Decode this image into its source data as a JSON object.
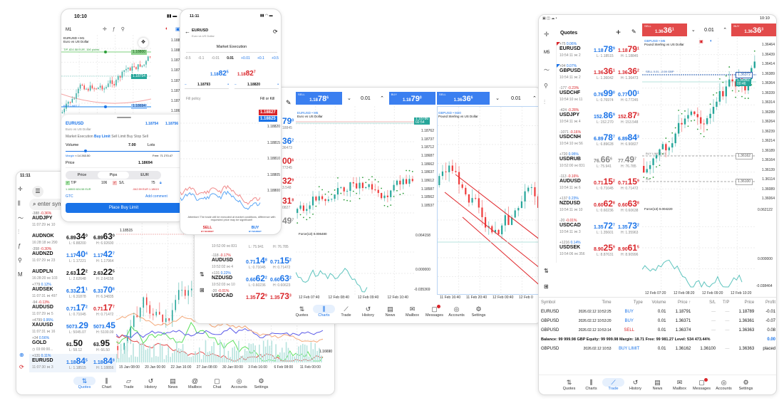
{
  "colors": {
    "accent": "#1a73e8",
    "bid_up": "#1a73e8",
    "down": "#d9252a",
    "bull": "#26a69a",
    "bear": "#ef3b3b",
    "sell_bar": "#e24a4a",
    "force": "#5ec4be"
  },
  "left_tablet": {
    "status_time": "11:11",
    "search_placeholder": "enter sym",
    "sidebar_icons": [
      "crosshair-icon",
      "candles-icon",
      "chart-trade-icon",
      "indicators-icon",
      "function-icon",
      "objects-icon",
      "timeframe-icon",
      "zoom-icon",
      "sync-icon"
    ],
    "quotes": [
      {
        "chg": "-388",
        "pct": "-0.36%",
        "pct_color": "red",
        "sym": "AUDJPY",
        "meta": "11:07:29 ⋈ 10",
        "bid": null,
        "ask": null,
        "low": "",
        "high": ""
      },
      {
        "chg": "",
        "pct": "",
        "pct_color": "red",
        "sym": "AUDNOK",
        "meta": "16:28:18 ⋈ 290",
        "bid": {
          "pre": "6.89",
          "big": "34",
          "sup": "0",
          "c": "blk"
        },
        "ask": {
          "pre": "6.89",
          "big": "63",
          "sup": "0",
          "c": "blk"
        },
        "low": "L: 6.88200",
        "high": "H: 6.92600"
      },
      {
        "chg": "-358",
        "pct": "-0.30%",
        "pct_color": "red",
        "sym": "AUDNZD",
        "meta": "11:07:29 ⋈ 23",
        "bid": {
          "pre": "1.17",
          "big": "40",
          "sup": "4",
          "c": "blue"
        },
        "ask": {
          "pre": "1.17",
          "big": "42",
          "sup": "7",
          "c": "blue"
        },
        "low": "L: 1.17221",
        "high": "H: 1.17964"
      },
      {
        "chg": "",
        "pct": "",
        "pct_color": "red",
        "sym": "AUDPLN",
        "meta": "16:28:20 ⋈ 103",
        "bid": {
          "pre": "2.63",
          "big": "12",
          "sup": "2",
          "c": "blk"
        },
        "ask": {
          "pre": "2.63",
          "big": "22",
          "sup": "5",
          "c": "blk"
        },
        "low": "L: 2.62648",
        "high": "H: 2.64158"
      },
      {
        "chg": "+779",
        "pct": "0.12%",
        "pct_color": "blue",
        "sym": "AUDSEK",
        "meta": "11:07:31 ⋈ 497",
        "bid": {
          "pre": "6.33",
          "big": "21",
          "sup": "1",
          "c": "blue"
        },
        "ask": {
          "pre": "6.33",
          "big": "70",
          "sup": "8",
          "c": "blue"
        },
        "low": "L: 6.31878",
        "high": "H: 6.34835"
      },
      {
        "chg": "-94",
        "pct": "-0.13%",
        "pct_color": "red",
        "sym": "AUDUSD",
        "meta": "11:07:29 ⋈ 5",
        "bid": {
          "pre": "0.71",
          "big": "17",
          "sup": "2",
          "c": "blue"
        },
        "ask": {
          "pre": "0.71",
          "big": "17",
          "sup": "7",
          "c": "red"
        },
        "low": "L: 0.71045",
        "high": "H: 0.71472"
      },
      {
        "chg": "+4799",
        "pct": "0.95%",
        "pct_color": "blue",
        "sym": "XAUUSD",
        "meta": "11:07:31 ⋈ 16",
        "bid": {
          "pre": "5073.",
          "big": "29",
          "sup": "",
          "c": "blue"
        },
        "ask": {
          "pre": "5073.",
          "big": "45",
          "sup": "",
          "c": "blue"
        },
        "low": "L: 5045.07",
        "high": "H: 5100.09"
      },
      {
        "chg": "+34",
        "pct": "0.56%",
        "pct_color": "blue",
        "sym": "GOLD",
        "meta": "◷ 03:00:00...",
        "bid": {
          "pre": "61.",
          "big": "50",
          "sup": "",
          "c": "blk"
        },
        "ask": {
          "pre": "63.",
          "big": "95",
          "sup": "",
          "c": "blk"
        },
        "low": "L: 58.12",
        "high": "H: 66.50"
      },
      {
        "chg": "+131",
        "pct": "0.11%",
        "pct_color": "blue",
        "sym": "EURUSD",
        "meta": "11:07:30 ⋈ 3",
        "bid": {
          "pre": "1.18",
          "big": "84",
          "sup": "5",
          "c": "blue"
        },
        "ask": {
          "pre": "1.18",
          "big": "84",
          "sup": "8",
          "c": "blue"
        },
        "low": "L: 1.18515",
        "high": "H: 1.18856"
      }
    ],
    "price_labels": [
      "1.18515",
      "1.16690"
    ],
    "time_labels": [
      "15 Jan 08:00",
      "20 Jan 00:00",
      "22 Jan 16:00",
      "27 Jan 08:00",
      "30 Jan 00:00",
      "3 Feb 16:00",
      "6 Feb 08:00",
      "11 Feb 00:00"
    ],
    "nav": [
      {
        "label": "Quotes",
        "icon": "⇅",
        "active": true
      },
      {
        "label": "Chart",
        "icon": "⫼"
      },
      {
        "label": "Trade",
        "icon": "▱"
      },
      {
        "label": "History",
        "icon": "↺"
      },
      {
        "label": "News",
        "icon": "▤"
      },
      {
        "label": "Mailbox",
        "icon": "@"
      },
      {
        "label": "Chat",
        "icon": "▢"
      },
      {
        "label": "Accounts",
        "icon": "◎"
      },
      {
        "label": "Settings",
        "icon": "⚙"
      }
    ]
  },
  "phone1": {
    "status_time": "10:10",
    "timeframe": "M1",
    "chart_symbol": "EURUSD • M1",
    "chart_desc": "Euro vs US Dollar",
    "tp_line": "T/P, 824.58 EUR, 106 points",
    "buy_limit_line": "BUY LIMIT 7",
    "axis": [
      "1.18820",
      "1.18800",
      "1.18780",
      "1.18760",
      "1.18740",
      "1.18720",
      "1.18700",
      "1.18680"
    ],
    "tags": {
      "tp": "1.18800",
      "current": "1.18754",
      "buy_limit": "1.18694"
    },
    "sheet": {
      "symbol": "EURUSD",
      "desc": "Euro vs US Dollar",
      "bid": "1.18754",
      "ask": "1.18756",
      "order_types": [
        "Market Execution",
        "Buy Limit",
        "Sell Limit",
        "Buy Stop",
        "Sell"
      ],
      "active_order_type": "Buy Limit",
      "volume_label": "Volume",
      "volume": "7.00",
      "volume_unit": "Lots",
      "margin_label": "Margin",
      "margin": "≈ 14 263.50",
      "free": "Free: 71 270.47",
      "price_label": "Price",
      "price": "1.18694",
      "segments": [
        "Price",
        "Pips",
        "EUR"
      ],
      "active_segment": "Pips",
      "tp_label": "T/P",
      "tp": "106",
      "sl_label": "S/L",
      "sl": "75",
      "tp_info": "1.18800  824.58 EUR",
      "sl_info": "-542.59 EUR  1.18619",
      "expiry": "GTC",
      "add_comment": "Add comment",
      "place": "Place Buy Limit"
    }
  },
  "phone2": {
    "status_time": "11:11",
    "symbol": "EURUSD",
    "desc": "Euro vs US Dollar",
    "execution": "Market Execution",
    "steps": [
      "-0.5",
      "-0.1",
      "-0.01",
      "0.01",
      "+0.01",
      "+0.1",
      "+0.5"
    ],
    "sell_price": {
      "pre": "1.18",
      "big": "82",
      "sup": "5"
    },
    "buy_price": {
      "pre": "1.18",
      "big": "82",
      "sup": "7"
    },
    "sl_value": "1.18793",
    "tp_value": "1.18820",
    "fill_label": "Fill policy",
    "fill_value": "Fill or Kill",
    "axis": [
      "1.18820",
      "1.18815",
      "1.18810",
      "1.18805",
      "1.18800"
    ],
    "tags": {
      "ask": "1.18827",
      "bid": "1.18825"
    },
    "attention": "Attention! The trade will be executed at market conditions, difference with requested price may be significant!",
    "sell": "SELL",
    "buy": "BUY",
    "by_market": "BY MARKET"
  },
  "mid_tablet": {
    "partial_prices": [
      {
        "p": "79",
        "s": "0",
        "c": "blue",
        "l": "18845"
      },
      {
        "p": "36",
        "s": "2",
        "c": "blue",
        "l": "36473"
      },
      {
        "p": "00",
        "s": "6",
        "c": "red",
        "l": "77245"
      },
      {
        "p": "32",
        "s": "9",
        "c": "red",
        "l": "3.548"
      },
      {
        "p": "31",
        "s": "8",
        "c": "red",
        "l": "0827"
      },
      {
        "p": "49",
        "s": "7",
        "c": "gray",
        "l": ""
      }
    ],
    "quotes": [
      {
        "chg": "",
        "pct": "",
        "pct_color": "red",
        "sym": "",
        "meta": "10:52:00 ⋈ 831",
        "bid": null,
        "ask": null,
        "low": "L: 75.941",
        "high": "H: 76.785"
      },
      {
        "chg": "-118",
        "pct": "-0.17%",
        "pct_color": "red",
        "sym": "AUDUSD",
        "meta": "10:52:02 ⋈ 4",
        "bid": {
          "pre": "0.71",
          "big": "14",
          "sup": "8",
          "c": "blue"
        },
        "ask": {
          "pre": "0.71",
          "big": "15",
          "sup": "2",
          "c": "blue"
        },
        "low": "L: 0.71045",
        "high": "H: 0.71472"
      },
      {
        "chg": "+131",
        "pct": "0.22%",
        "pct_color": "blue",
        "sym": "NZDUSD",
        "meta": "10:52:03 ⋈ 10",
        "bid": {
          "pre": "0.60",
          "big": "62",
          "sup": "2",
          "c": "blue"
        },
        "ask": {
          "pre": "0.60",
          "big": "63",
          "sup": "2",
          "c": "blue"
        },
        "low": "L: 0.60236",
        "high": "H: 0.60623"
      },
      {
        "chg": "-20",
        "pct": "-0.01%",
        "pct_color": "red",
        "sym": "USDCAD",
        "meta": "",
        "bid": {
          "pre": "1.35",
          "big": "72",
          "sup": "9",
          "c": "red"
        },
        "ask": {
          "pre": "1.35",
          "big": "73",
          "sup": "3",
          "c": "red"
        },
        "low": "",
        "high": ""
      }
    ],
    "chart1": {
      "sell_label": "SELL",
      "sell": {
        "pre": "1.18",
        "big": "78",
        "sup": "6"
      },
      "buy_label": "BUY",
      "buy": {
        "pre": "1.18",
        "big": "79",
        "sup": "0"
      },
      "volume": "0.01",
      "symbol": "EURUSD • M5",
      "desc": "Euro vs US Dollar",
      "axis": [
        "1.18762",
        "1.18737",
        "1.18712",
        "1.18687",
        "1.18662",
        "1.18637",
        "1.18612",
        "1.18587",
        "1.18562",
        "1.18537"
      ],
      "tag": "1.18786",
      "tag_time": "02:54",
      "force_label": "Force(13) 0.006480",
      "force_axis": [
        "0.064158",
        "0.000000",
        "-0.035369"
      ],
      "times": [
        "12 Feb 07:40",
        "12 Feb 08:40",
        "12 Feb 09:40",
        "12 Feb 10:40"
      ]
    },
    "chart2": {
      "sell_label": "SELL",
      "sell": {
        "pre": "1.36",
        "big": "36",
        "sup": "6"
      },
      "symbol": "GBPUSD • M20",
      "desc": "Pound Sterling vs US Dollar",
      "times": [
        "11 Feb 16:40",
        "11 Feb 20:40",
        "12 Feb 00:40",
        "12 Feb 0"
      ]
    },
    "nav": [
      {
        "label": "Quotes",
        "icon": "⇅"
      },
      {
        "label": "Charts",
        "icon": "⫼",
        "active": true
      },
      {
        "label": "Trade",
        "icon": "⟋"
      },
      {
        "label": "History",
        "icon": "↺"
      },
      {
        "label": "News",
        "icon": "▤"
      },
      {
        "label": "Mailbox",
        "icon": "✉"
      },
      {
        "label": "Messages",
        "icon": "▢",
        "badge": true
      },
      {
        "label": "Accounts",
        "icon": "◎"
      },
      {
        "label": "Settings",
        "icon": "⚙"
      }
    ]
  },
  "right_tablet": {
    "status_time": "10:10",
    "side": [
      "crosshair-icon",
      "M5",
      "indicators-icon",
      "objects-icon",
      "settings-sliders-icon"
    ],
    "timeframe": "M5",
    "quotes_title": "Quotes",
    "quotes": [
      {
        "chg": "+75",
        "pct": "0.06%",
        "pct_color": "blue",
        "sym": "EURUSD",
        "meta": "10:54:11 ⋈ 2",
        "bid": {
          "pre": "1.18",
          "big": "78",
          "sup": "9",
          "c": "blue"
        },
        "ask": {
          "pre": "1.18",
          "big": "79",
          "sup": "1",
          "c": "red"
        },
        "low": "L: 1.18515",
        "high": "H: 1.18845",
        "flag": "red"
      },
      {
        "chg": "+94",
        "pct": "0.07%",
        "pct_color": "blue",
        "sym": "GBPUSD",
        "meta": "10:54:11 ⋈ 2",
        "bid": {
          "pre": "1.36",
          "big": "36",
          "sup": "1",
          "c": "red"
        },
        "ask": {
          "pre": "1.36",
          "big": "36",
          "sup": "2",
          "c": "red"
        },
        "low": "L: 1.36042",
        "high": "H: 1.36473",
        "flag": "blue"
      },
      {
        "chg": "-177",
        "pct": "-0.23%",
        "pct_color": "red",
        "sym": "USDCHF",
        "meta": "10:54:10 ⋈ 11",
        "bid": {
          "pre": "0.76",
          "big": "99",
          "sup": "0",
          "c": "blue"
        },
        "ask": {
          "pre": "0.77",
          "big": "00",
          "sup": "1",
          "c": "blue"
        },
        "low": "L: 0.76974",
        "high": "H: 0.77245"
      },
      {
        "chg": "-424",
        "pct": "-0.28%",
        "pct_color": "red",
        "sym": "USDJPY",
        "meta": "10:54:11 ⋈ 4",
        "bid": {
          "pre": "152.",
          "big": "86",
          "sup": "9",
          "c": "blue"
        },
        "ask": {
          "pre": "152.",
          "big": "87",
          "sup": "3",
          "c": "red"
        },
        "low": "L: 152.270",
        "high": "H: 153.548"
      },
      {
        "chg": "-1071",
        "pct": "-0.16%",
        "pct_color": "red",
        "sym": "USDCNH",
        "meta": "10:54:10 ⋈ 56",
        "bid": {
          "pre": "6.89",
          "big": "78",
          "sup": "7",
          "c": "blue"
        },
        "ask": {
          "pre": "6.89",
          "big": "84",
          "sup": "3",
          "c": "blue"
        },
        "low": "L: 6.89628",
        "high": "H: 6.90827"
      },
      {
        "chg": "+720",
        "pct": "0.95%",
        "pct_color": "blue",
        "sym": "USDRUB",
        "meta": "10:52:00 ⋈ 831",
        "bid": {
          "pre": "76.",
          "big": "66",
          "sup": "6",
          "c": "gray"
        },
        "ask": {
          "pre": "77.",
          "big": "49",
          "sup": "7",
          "c": "gray"
        },
        "low": "L: 75.941",
        "high": "H: 76.785"
      },
      {
        "chg": "-113",
        "pct": "-0.16%",
        "pct_color": "red",
        "sym": "AUDUSD",
        "meta": "10:54:11 ⋈ 6",
        "bid": {
          "pre": "0.71",
          "big": "15",
          "sup": "2",
          "c": "red"
        },
        "ask": {
          "pre": "0.71",
          "big": "15",
          "sup": "9",
          "c": "red"
        },
        "low": "L: 0.71045",
        "high": "H: 0.71472"
      },
      {
        "chg": "+137",
        "pct": "0.23%",
        "pct_color": "blue",
        "sym": "NZDUSD",
        "meta": "10:54:11 ⋈ 10",
        "bid": {
          "pre": "0.60",
          "big": "62",
          "sup": "8",
          "c": "red"
        },
        "ask": {
          "pre": "0.60",
          "big": "63",
          "sup": "8",
          "c": "red"
        },
        "low": "L: 0.60236",
        "high": "H: 0.60638"
      },
      {
        "chg": "-20",
        "pct": "-0.01%",
        "pct_color": "red",
        "sym": "USDCAD",
        "meta": "10:54:11 ⋈ 3",
        "bid": {
          "pre": "1.35",
          "big": "72",
          "sup": "7",
          "c": "blue"
        },
        "ask": {
          "pre": "1.35",
          "big": "73",
          "sup": "2",
          "c": "blue"
        },
        "low": "L: 1.35601",
        "high": "H: 1.35963"
      },
      {
        "chg": "+1216",
        "pct": "0.14%",
        "pct_color": "blue",
        "sym": "USDSEK",
        "meta": "10:54:06 ⋈ 356",
        "bid": {
          "pre": "8.90",
          "big": "25",
          "sup": "9",
          "c": "red"
        },
        "ask": {
          "pre": "8.90",
          "big": "61",
          "sup": "5",
          "c": "red"
        },
        "low": "L: 8.87631",
        "high": "H: 8.90996"
      }
    ],
    "chart": {
      "sell_label": "SELL",
      "sell": {
        "pre": "1.36",
        "big": "36",
        "sup": "1"
      },
      "buy_label": "BUY",
      "buy": {
        "pre": "1.36",
        "big": "36",
        "sup": "3"
      },
      "volume": "0.01",
      "symbol": "GBPUSD • M5",
      "desc": "Pound Sterling vs US Dollar",
      "axis": [
        "1.36464",
        "1.36439",
        "1.36414",
        "1.36389",
        "1.36364",
        "1.36339",
        "1.36314",
        "1.36289",
        "1.36264",
        "1.36239",
        "1.36214",
        "1.36189",
        "1.36164",
        "1.36139",
        "1.36114",
        "1.36089",
        "1.36064"
      ],
      "tags": {
        "a": "1.36372",
        "b": "1.36361",
        "b_time": "00:46",
        "buy_limit": "1.36162",
        "sl": "1.36100"
      },
      "sell_line": "SELL 0.01, -0.59 GBP",
      "buy_limit_line": "BUY LIMIT 0.01",
      "sl_line": "S/L",
      "force_label": "Force(13) 0.004220",
      "force_axis": [
        "0.062122",
        "0.000000",
        "-0.038464"
      ],
      "times": [
        "12 Feb 07:20",
        "12 Feb 08:20",
        "12 Feb 09:20",
        "12 Feb 10:20"
      ]
    },
    "table": {
      "headers": [
        "Symbol",
        "Time",
        "Type",
        "Volume",
        "Price ↑",
        "S/L",
        "T/P",
        "Price",
        "Profit"
      ],
      "rows": [
        [
          "EURUSD",
          "2026.02.12 10:52:25",
          "BUY",
          "0.01",
          "1.18791",
          "—",
          "—",
          "1.18789",
          "-0.01"
        ],
        [
          "GBPUSD",
          "2026.02.12 10:53:20",
          "BUY",
          "0.01",
          "1.36371",
          "—",
          "—",
          "1.36361",
          "-0.07"
        ],
        [
          "GBPUSD",
          "2026.02.12 10:53:14",
          "SELL",
          "0.01",
          "1.36374",
          "—",
          "—",
          "1.36363",
          "0.08"
        ]
      ],
      "summary": "Balance: 99 999.98 GBP  Equity: 99 999.98  Margin: 18.71  Free: 99 981.27  Level: 534 473.44%",
      "summary_profit": "0.00",
      "orders": [
        [
          "GBPUSD",
          "2026.02.12 10:53",
          "BUY LIMIT",
          "0.01",
          "1.36162",
          "1.36100",
          "—",
          "1.36363",
          "placed"
        ]
      ]
    },
    "nav": [
      {
        "label": "Quotes",
        "icon": "⇅"
      },
      {
        "label": "Charts",
        "icon": "⫼"
      },
      {
        "label": "Trade",
        "icon": "⟋",
        "active": true
      },
      {
        "label": "History",
        "icon": "↺"
      },
      {
        "label": "News",
        "icon": "▤"
      },
      {
        "label": "Mailbox",
        "icon": "✉"
      },
      {
        "label": "Messages",
        "icon": "▢",
        "badge": true
      },
      {
        "label": "Accounts",
        "icon": "◎"
      },
      {
        "label": "Settings",
        "icon": "⚙"
      }
    ]
  }
}
